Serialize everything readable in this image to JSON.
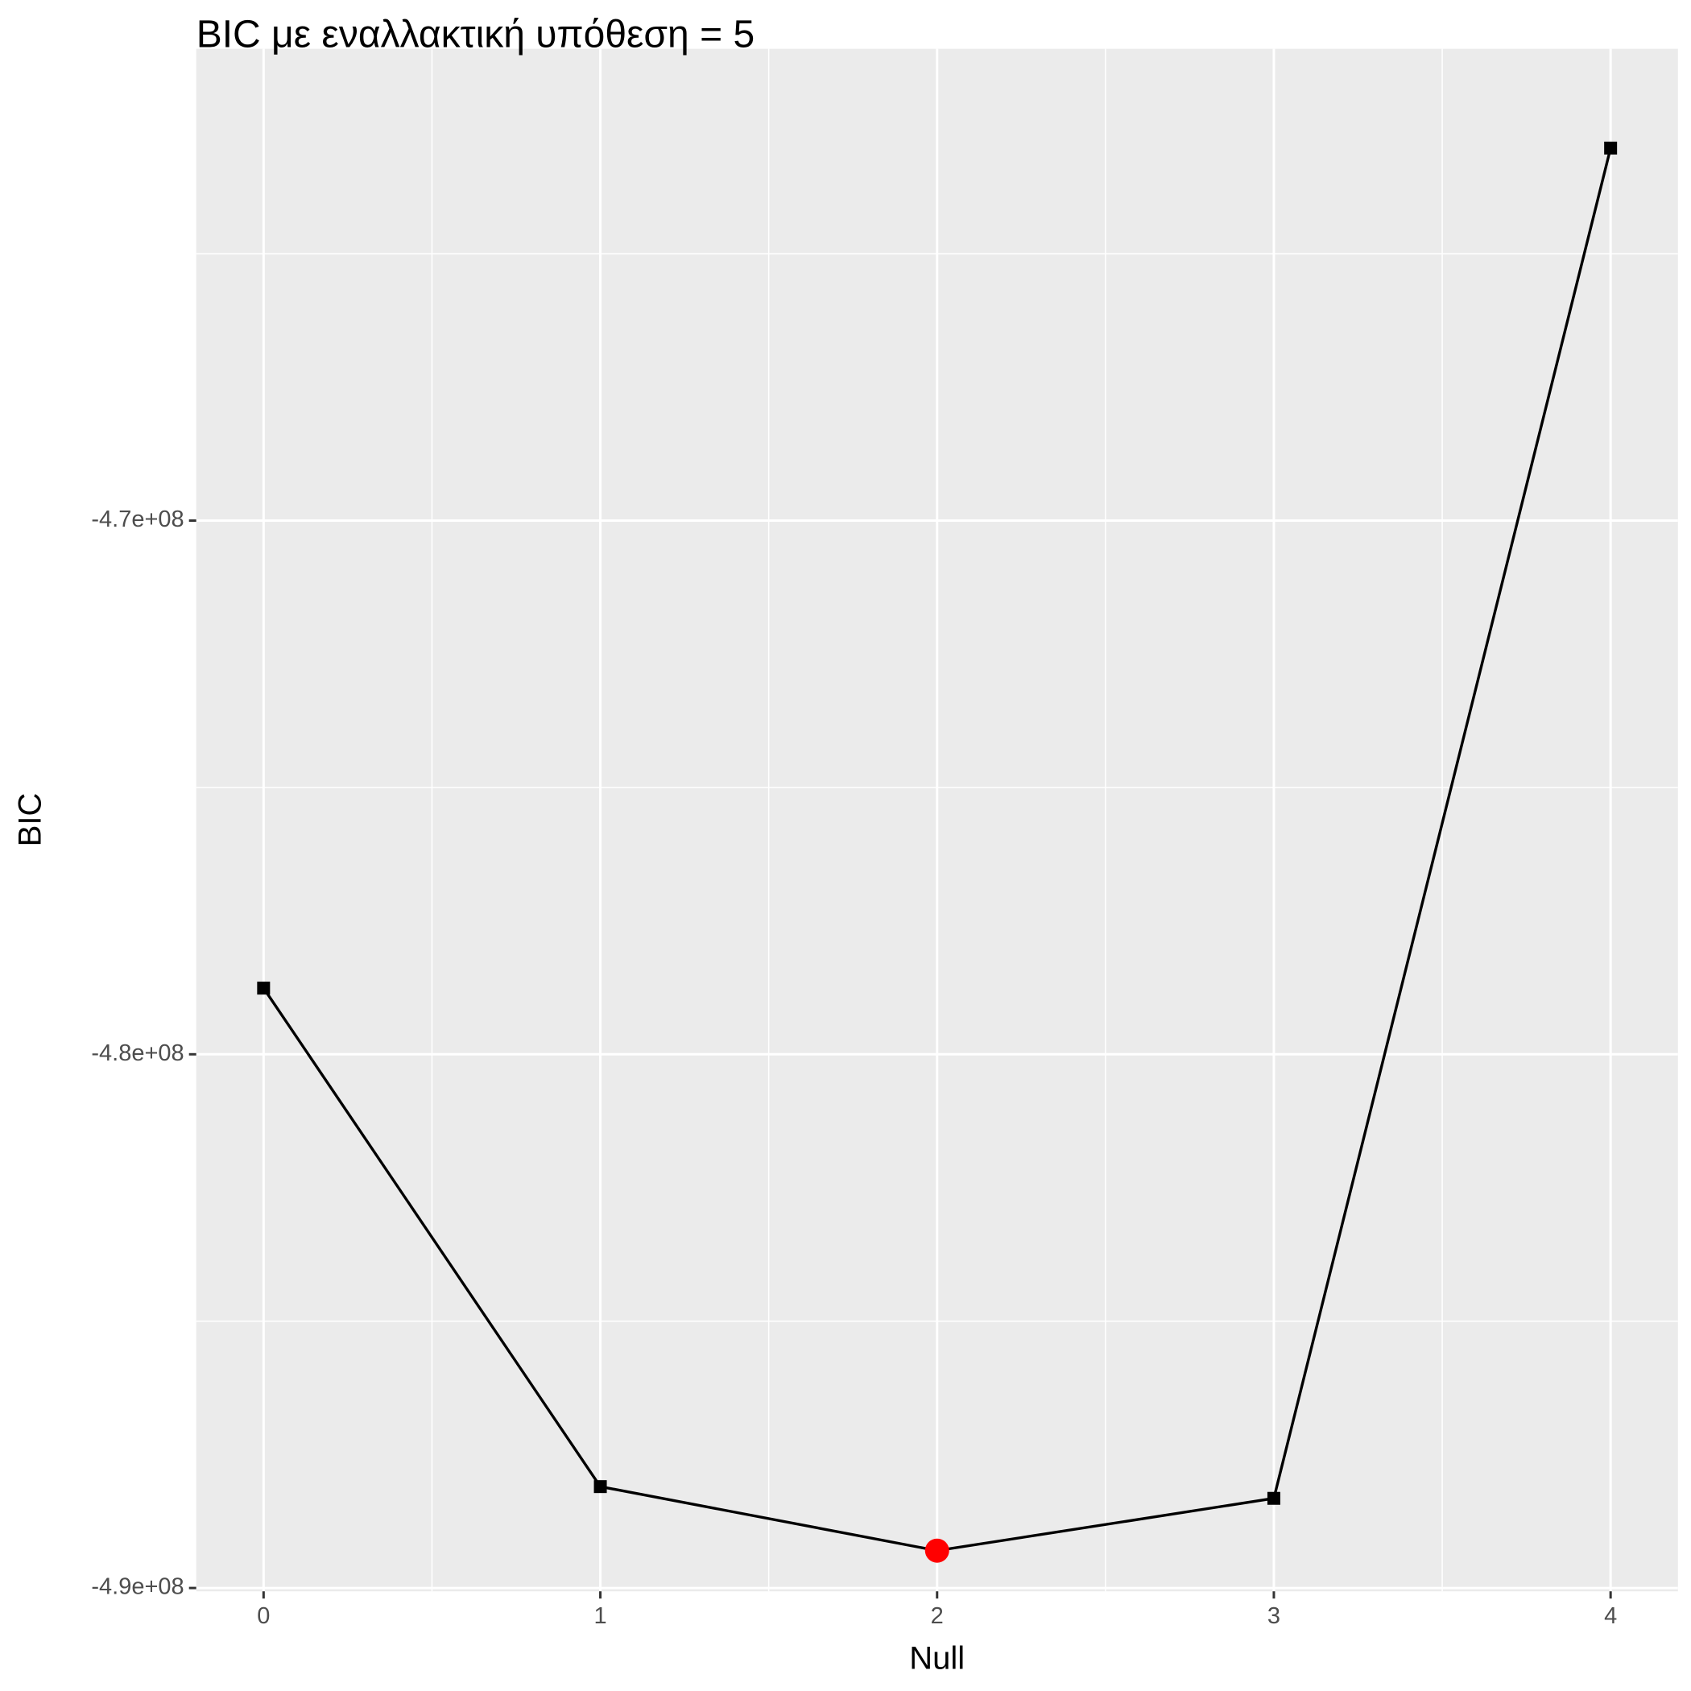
{
  "chart_data": {
    "type": "line",
    "title": "BIC με εναλλακτική υπόθεση =  5",
    "x_label": "Null",
    "y_label": "BIC",
    "x": [
      0,
      1,
      2,
      3,
      4
    ],
    "series": [
      {
        "name": "BIC",
        "color": "#000000",
        "values": [
          -478760000,
          -488100000,
          -489300000,
          -488320000,
          -463020000
        ]
      }
    ],
    "highlight_index": 2,
    "highlight_color": "#ff0000",
    "xlim": [
      -0.2,
      4.2
    ],
    "xticks": [
      0,
      1,
      2,
      3,
      4
    ],
    "minor_xticks": [
      0.5,
      1.5,
      2.5,
      3.5
    ],
    "ylim": [
      -490062000,
      -461160000
    ],
    "yticks": [
      {
        "value": -490000000,
        "label": "-4.9e+08"
      },
      {
        "value": -480000000,
        "label": "-4.8e+08"
      },
      {
        "value": -470000000,
        "label": "-4.7e+08"
      }
    ],
    "minor_yticks": [
      -485000000,
      -475000000,
      -465000000
    ],
    "grid": true
  }
}
